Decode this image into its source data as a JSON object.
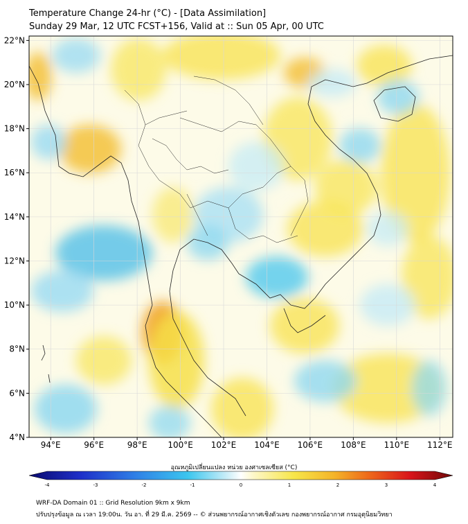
{
  "header": {
    "title": "Temperature Change 24-hr (°C) - [Data Assimilation]",
    "subtitle": "Sunday 29 Mar, 12 UTC FCST+156, Valid at :: Sun 05 Apr, 00 UTC"
  },
  "map": {
    "lat_ticks": [
      "4°N",
      "6°N",
      "8°N",
      "10°N",
      "12°N",
      "14°N",
      "16°N",
      "18°N",
      "20°N",
      "22°N"
    ],
    "lon_ticks": [
      "94°E",
      "96°E",
      "98°E",
      "100°E",
      "102°E",
      "104°E",
      "106°E",
      "108°E",
      "110°E",
      "112°E"
    ],
    "lat_range": [
      4,
      22.2
    ],
    "lon_range": [
      93,
      112.6
    ]
  },
  "colorbar": {
    "title": "อุณหภูมิเปลี่ยนแปลง หน่วย องศาเซลเซียส (°C)",
    "ticks": [
      "-4",
      "-3",
      "-2",
      "-1",
      "0",
      "1",
      "2",
      "3",
      "4"
    ],
    "range": [
      -4,
      4
    ]
  },
  "footer": {
    "line1": "WRF-DA Domain 01 :: Grid Resolution 9km x 9km",
    "line2": "ปรับปรุงข้อมูล ณ เวลา 19:00น. วัน อา. ที่ 29 มี.ค. 2569 -- © ส่วนพยากรณ์อากาศเชิงตัวเลข กองพยากรณ์อากาศ กรมอุตุนิยมวิทยา"
  },
  "colors": {
    "warm": "#f5e24a",
    "warm_strong": "#f0a020",
    "cool": "#8fd8f0",
    "cool_strong": "#40b8e8",
    "coast": "#222222"
  }
}
